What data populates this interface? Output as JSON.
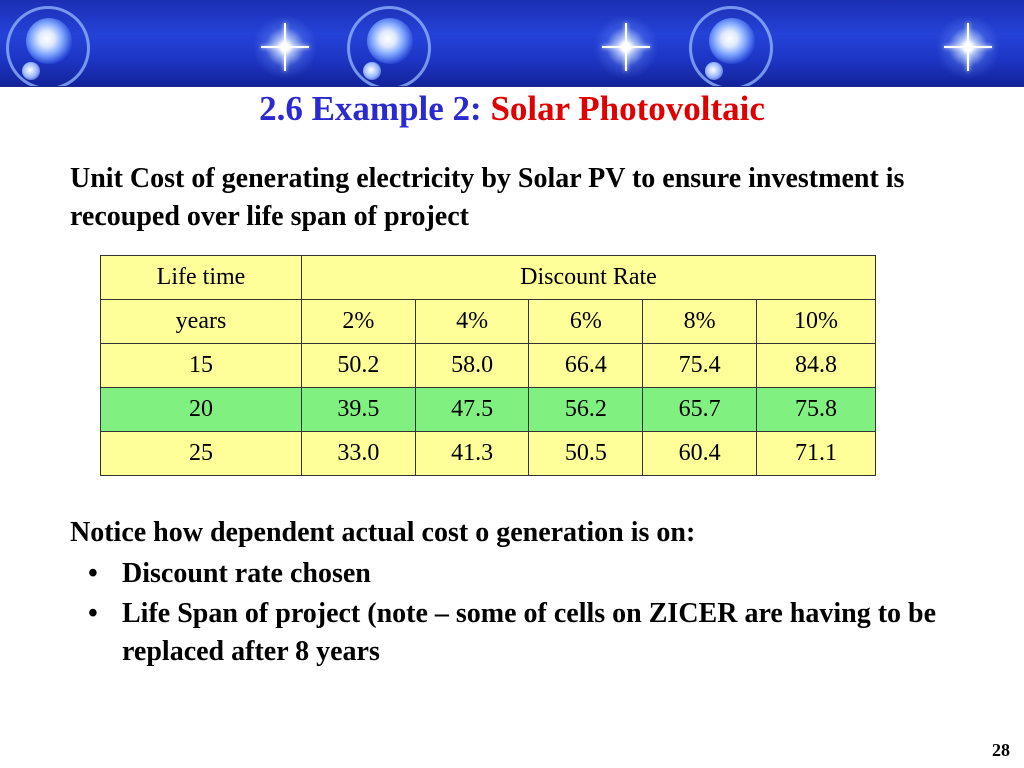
{
  "title": {
    "prefix": "2.6 Example 2:",
    "highlight": "Solar Photovoltaic"
  },
  "intro": "Unit Cost of generating electricity by Solar PV to ensure investment is recouped over life span of project",
  "table": {
    "header_life": "Life time",
    "header_rate": "Discount Rate",
    "subheader_life": "years",
    "rates": [
      "2%",
      "4%",
      "6%",
      "8%",
      "10%"
    ],
    "rows": [
      {
        "years": "15",
        "values": [
          "50.2",
          "58.0",
          "66.4",
          "75.4",
          "84.8"
        ],
        "highlight": false
      },
      {
        "years": "20",
        "values": [
          "39.5",
          "47.5",
          "56.2",
          "65.7",
          "75.8"
        ],
        "highlight": true
      },
      {
        "years": "25",
        "values": [
          "33.0",
          "41.3",
          "50.5",
          "60.4",
          "71.1"
        ],
        "highlight": false
      }
    ],
    "colors": {
      "cell": "#ffff99",
      "highlight_row": "#80f080"
    }
  },
  "notice": "Notice how dependent actual cost o generation is on:",
  "bullets": [
    "Discount rate chosen",
    "Life Span of project  (note – some of cells on ZICER are having to be replaced after 8 years"
  ],
  "bullet_glyph": "•",
  "page_number": "28",
  "banner": {
    "icons": [
      "planet-icon",
      "star-icon",
      "planet-icon",
      "star-icon",
      "planet-icon",
      "star-icon"
    ]
  }
}
